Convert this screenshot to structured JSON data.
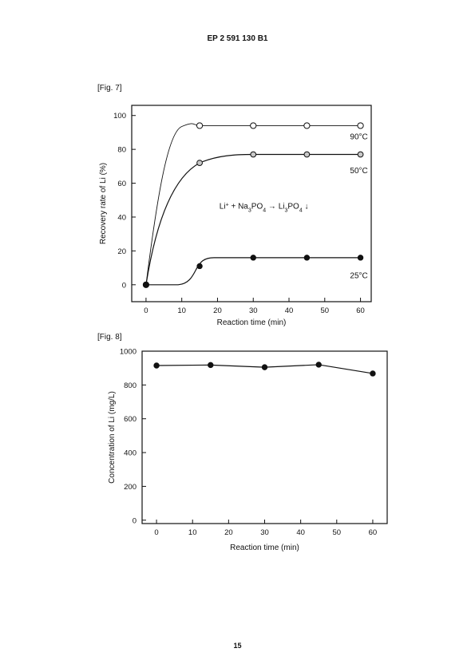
{
  "header": {
    "patent_number": "EP 2 591 130 B1"
  },
  "page_number": "15",
  "chart_data": [
    {
      "label": "[Fig. 7]",
      "type": "line",
      "xlabel": "Reaction time (min)",
      "ylabel": "Recovery rate of Li (%)",
      "xlim": [
        -4,
        63
      ],
      "ylim": [
        -10,
        106
      ],
      "xticks": [
        0,
        10,
        20,
        30,
        40,
        50,
        60
      ],
      "yticks": [
        0,
        20,
        40,
        60,
        80,
        100
      ],
      "annotation": {
        "parts": [
          "Li",
          "+",
          " + Na",
          "3",
          "PO",
          "4",
          " → Li",
          "3",
          "PO",
          "4",
          " ↓"
        ],
        "x": 33,
        "y": 45
      },
      "series": [
        {
          "name": "90°C",
          "marker": "open-circle",
          "points": [
            [
              0,
              0
            ],
            [
              15,
              94
            ],
            [
              30,
              94
            ],
            [
              45,
              94
            ],
            [
              60,
              94
            ]
          ],
          "label_pos": [
            60,
            86
          ]
        },
        {
          "name": "50°C",
          "marker": "gray-circle",
          "points": [
            [
              0,
              0
            ],
            [
              15,
              72
            ],
            [
              30,
              77
            ],
            [
              45,
              77
            ],
            [
              60,
              77
            ]
          ],
          "label_pos": [
            60,
            66
          ]
        },
        {
          "name": "25°C",
          "marker": "filled-circle",
          "points": [
            [
              0,
              0
            ],
            [
              15,
              11
            ],
            [
              30,
              16
            ],
            [
              45,
              16
            ],
            [
              60,
              16
            ]
          ],
          "label_pos": [
            60,
            4
          ]
        }
      ]
    },
    {
      "label": "[Fig. 8]",
      "type": "line",
      "xlabel": "Reaction time (min)",
      "ylabel": "Concentration of Li (mg/L)",
      "xlim": [
        -4,
        64
      ],
      "ylim": [
        -20,
        1000
      ],
      "xticks": [
        0,
        10,
        20,
        30,
        40,
        50,
        60
      ],
      "yticks": [
        0,
        200,
        400,
        600,
        800,
        1000
      ],
      "series": [
        {
          "name": "",
          "marker": "filled-circle",
          "points": [
            [
              0,
              915
            ],
            [
              15,
              918
            ],
            [
              30,
              905
            ],
            [
              45,
              920
            ],
            [
              60,
              868
            ]
          ]
        }
      ]
    }
  ]
}
